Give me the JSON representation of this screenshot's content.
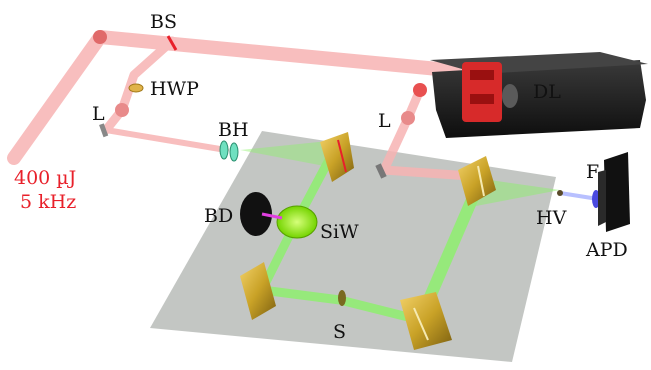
{
  "labels": {
    "bs": "BS",
    "hwp": "HWP",
    "l_left": "L",
    "l_right": "L",
    "bh": "BH",
    "dl": "DL",
    "f": "F",
    "hv": "HV",
    "apd": "APD",
    "bd": "BD",
    "siw": "SiW",
    "s": "S"
  },
  "source": {
    "energy": "400 µJ",
    "rate": "5 kHz"
  },
  "colors": {
    "pump_beam": "#f7b3b3",
    "accent_red": "#e8202a",
    "green_beam": "#8cf26a",
    "mirror_gold": "#c9a227",
    "table": "#b9bcb8",
    "stage_dark": "#1e1e1e",
    "probe_blue": "#3a3ae0"
  }
}
